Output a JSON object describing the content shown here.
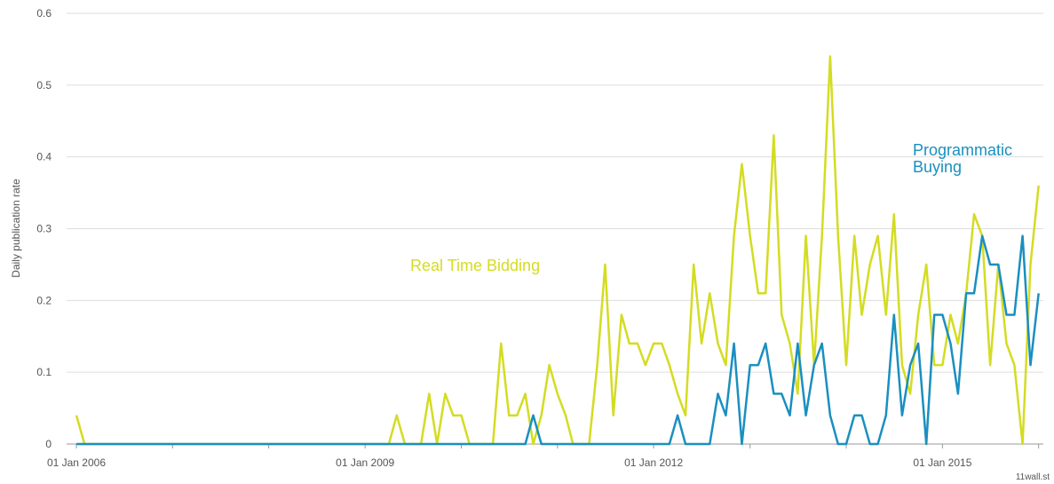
{
  "chart_data": {
    "type": "line",
    "y_label": "Daily publication rate",
    "source": "11wall.st",
    "x": [
      "2006-01-01",
      "2006-02-01",
      "2006-03-01",
      "2006-04-01",
      "2006-05-01",
      "2006-06-01",
      "2006-07-01",
      "2006-08-01",
      "2006-09-01",
      "2006-10-01",
      "2006-11-01",
      "2006-12-01",
      "2007-01-01",
      "2007-02-01",
      "2007-03-01",
      "2007-04-01",
      "2007-05-01",
      "2007-06-01",
      "2007-07-01",
      "2007-08-01",
      "2007-09-01",
      "2007-10-01",
      "2007-11-01",
      "2007-12-01",
      "2008-01-01",
      "2008-02-01",
      "2008-03-01",
      "2008-04-01",
      "2008-05-01",
      "2008-06-01",
      "2008-07-01",
      "2008-08-01",
      "2008-09-01",
      "2008-10-01",
      "2008-11-01",
      "2008-12-01",
      "2009-01-01",
      "2009-02-01",
      "2009-03-01",
      "2009-04-01",
      "2009-05-01",
      "2009-06-01",
      "2009-07-01",
      "2009-08-01",
      "2009-09-01",
      "2009-10-01",
      "2009-11-01",
      "2009-12-01",
      "2010-01-01",
      "2010-02-01",
      "2010-03-01",
      "2010-04-01",
      "2010-05-01",
      "2010-06-01",
      "2010-07-01",
      "2010-08-01",
      "2010-09-01",
      "2010-10-01",
      "2010-11-01",
      "2010-12-01",
      "2011-01-01",
      "2011-02-01",
      "2011-03-01",
      "2011-04-01",
      "2011-05-01",
      "2011-06-01",
      "2011-07-01",
      "2011-08-01",
      "2011-09-01",
      "2011-10-01",
      "2011-11-01",
      "2011-12-01",
      "2012-01-01",
      "2012-02-01",
      "2012-03-01",
      "2012-04-01",
      "2012-05-01",
      "2012-06-01",
      "2012-07-01",
      "2012-08-01",
      "2012-09-01",
      "2012-10-01",
      "2012-11-01",
      "2012-12-01",
      "2013-01-01",
      "2013-02-01",
      "2013-03-01",
      "2013-04-01",
      "2013-05-01",
      "2013-06-01",
      "2013-07-01",
      "2013-08-01",
      "2013-09-01",
      "2013-10-01",
      "2013-11-01",
      "2013-12-01",
      "2014-01-01",
      "2014-02-01",
      "2014-03-01",
      "2014-04-01",
      "2014-05-01",
      "2014-06-01",
      "2014-07-01",
      "2014-08-01",
      "2014-09-01",
      "2014-10-01",
      "2014-11-01",
      "2014-12-01",
      "2015-01-01",
      "2015-02-01",
      "2015-03-01",
      "2015-04-01",
      "2015-05-01",
      "2015-06-01",
      "2015-07-01",
      "2015-08-01",
      "2015-09-01",
      "2015-10-01",
      "2015-11-01",
      "2015-12-01",
      "2016-01-01"
    ],
    "series": [
      {
        "name": "Real Time Bidding",
        "color": "#d4dc22",
        "values": [
          0.04,
          0,
          0,
          0,
          0,
          0,
          0,
          0,
          0,
          0,
          0,
          0,
          0,
          0,
          0,
          0,
          0,
          0,
          0,
          0,
          0,
          0,
          0,
          0,
          0,
          0,
          0,
          0,
          0,
          0,
          0,
          0,
          0,
          0,
          0,
          0,
          0,
          0,
          0,
          0,
          0.04,
          0,
          0,
          0,
          0.07,
          0,
          0.07,
          0.04,
          0.04,
          0,
          0,
          0,
          0,
          0.14,
          0.04,
          0.04,
          0.07,
          0,
          0.04,
          0.11,
          0.07,
          0.04,
          0,
          0,
          0,
          0.11,
          0.25,
          0.04,
          0.18,
          0.14,
          0.14,
          0.11,
          0.14,
          0.14,
          0.11,
          0.07,
          0.04,
          0.25,
          0.14,
          0.21,
          0.14,
          0.11,
          0.29,
          0.39,
          0.29,
          0.21,
          0.21,
          0.43,
          0.18,
          0.14,
          0.07,
          0.29,
          0.11,
          0.29,
          0.54,
          0.29,
          0.11,
          0.29,
          0.18,
          0.25,
          0.29,
          0.18,
          0.32,
          0.11,
          0.07,
          0.18,
          0.25,
          0.11,
          0.11,
          0.18,
          0.14,
          0.21,
          0.32,
          0.29,
          0.11,
          0.25,
          0.14,
          0.11,
          0,
          0.25,
          0.36
        ]
      },
      {
        "name": "Programmatic Buying",
        "color": "#1a8fc0",
        "values": [
          0,
          0,
          0,
          0,
          0,
          0,
          0,
          0,
          0,
          0,
          0,
          0,
          0,
          0,
          0,
          0,
          0,
          0,
          0,
          0,
          0,
          0,
          0,
          0,
          0,
          0,
          0,
          0,
          0,
          0,
          0,
          0,
          0,
          0,
          0,
          0,
          0,
          0,
          0,
          0,
          0,
          0,
          0,
          0,
          0,
          0,
          0,
          0,
          0,
          0,
          0,
          0,
          0,
          0,
          0,
          0,
          0,
          0.04,
          0,
          0,
          0,
          0,
          0,
          0,
          0,
          0,
          0,
          0,
          0,
          0,
          0,
          0,
          0,
          0,
          0,
          0.04,
          0,
          0,
          0,
          0,
          0.07,
          0.04,
          0.14,
          0,
          0.11,
          0.11,
          0.14,
          0.07,
          0.07,
          0.04,
          0.14,
          0.04,
          0.11,
          0.14,
          0.04,
          0,
          0,
          0.04,
          0.04,
          0,
          0,
          0.04,
          0.18,
          0.04,
          0.11,
          0.14,
          0,
          0.18,
          0.18,
          0.14,
          0.07,
          0.21,
          0.21,
          0.29,
          0.25,
          0.25,
          0.18,
          0.18,
          0.29,
          0.11,
          0.21
        ]
      }
    ],
    "xlim": [
      "2005-11-25",
      "2016-01-19"
    ],
    "xticks": [
      {
        "value": "2006-01-01",
        "label": "01 Jan 2006"
      },
      {
        "value": "2009-01-01",
        "label": "01 Jan 2009"
      },
      {
        "value": "2012-01-01",
        "label": "01 Jan 2012"
      },
      {
        "value": "2015-01-01",
        "label": "01 Jan 2015"
      }
    ],
    "xminorticks": [
      "2007-01-01",
      "2008-01-01",
      "2010-01-01",
      "2011-01-01",
      "2013-01-01",
      "2014-01-01",
      "2016-01-01"
    ],
    "ylim": [
      0,
      0.6
    ],
    "yticks": [
      0,
      0.1,
      0.2,
      0.3,
      0.4,
      0.5,
      0.6
    ],
    "grid": true
  }
}
